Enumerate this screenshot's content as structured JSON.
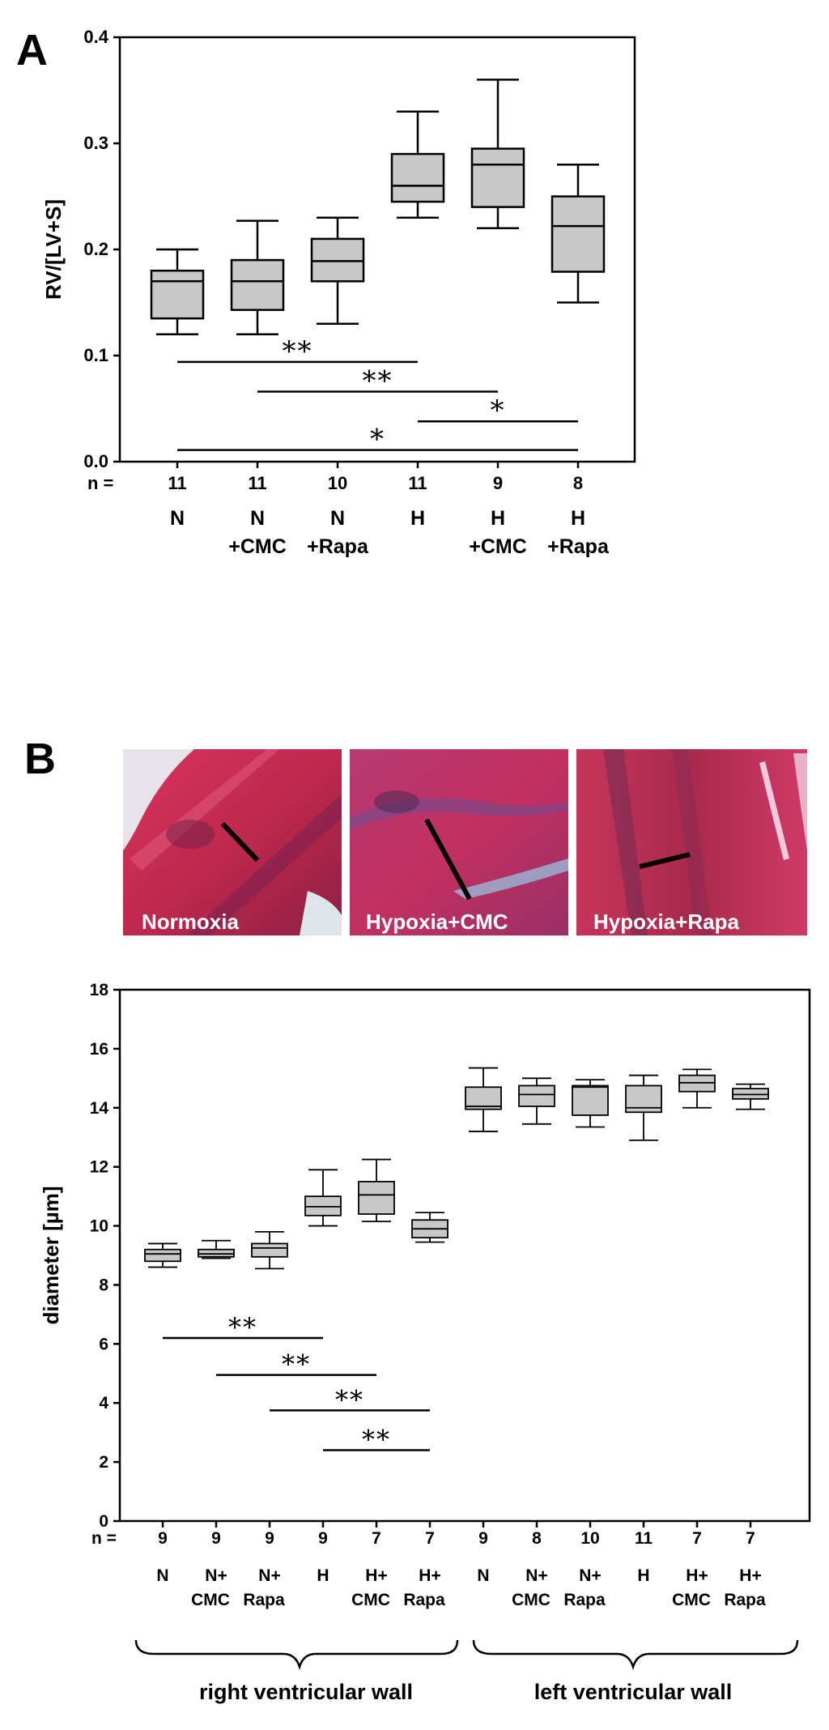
{
  "panel_a_letter": "A",
  "panel_b_letter": "B",
  "colors": {
    "box_fill": "#c8c8c8",
    "axis": "#000000",
    "tissue_red": "#c0284e"
  },
  "micrographs": [
    {
      "label": "Normoxia"
    },
    {
      "label": "Hypoxia+CMC"
    },
    {
      "label": "Hypoxia+Rapa"
    }
  ],
  "region_labels": [
    "right ventricular wall",
    "left ventricular wall"
  ],
  "chart_data": [
    {
      "type": "boxplot",
      "ylabel": "RV/[LV+S]",
      "xlabel": "",
      "ylim": [
        0,
        0.4
      ],
      "yticks": [
        "0.0",
        "0.1",
        "0.2",
        "0.3",
        "0.4"
      ],
      "n_label": "n =",
      "groups": [
        {
          "line1": "N",
          "line2": "",
          "n": "11",
          "whisker_low": 0.12,
          "q1": 0.135,
          "median": 0.17,
          "q3": 0.18,
          "whisker_high": 0.2
        },
        {
          "line1": "N",
          "line2": "+CMC",
          "n": "11",
          "whisker_low": 0.12,
          "q1": 0.143,
          "median": 0.17,
          "q3": 0.19,
          "whisker_high": 0.227
        },
        {
          "line1": "N",
          "line2": "+Rapa",
          "n": "10",
          "whisker_low": 0.13,
          "q1": 0.17,
          "median": 0.189,
          "q3": 0.21,
          "whisker_high": 0.23
        },
        {
          "line1": "H",
          "line2": "",
          "n": "11",
          "whisker_low": 0.23,
          "q1": 0.245,
          "median": 0.26,
          "q3": 0.29,
          "whisker_high": 0.33
        },
        {
          "line1": "H",
          "line2": "+CMC",
          "n": "9",
          "whisker_low": 0.22,
          "q1": 0.24,
          "median": 0.28,
          "q3": 0.295,
          "whisker_high": 0.36
        },
        {
          "line1": "H",
          "line2": "+Rapa",
          "n": "8",
          "whisker_low": 0.15,
          "q1": 0.179,
          "median": 0.222,
          "q3": 0.25,
          "whisker_high": 0.28
        }
      ],
      "significance": [
        {
          "from": 0,
          "to": 3,
          "y": 0.094,
          "label": "**"
        },
        {
          "from": 1,
          "to": 4,
          "y": 0.066,
          "label": "**"
        },
        {
          "from": 3,
          "to": 5,
          "y": 0.038,
          "label": "*"
        },
        {
          "from": 0,
          "to": 5,
          "y": 0.011,
          "label": "*"
        }
      ]
    },
    {
      "type": "boxplot",
      "ylabel": "diameter [µm]",
      "xlabel": "",
      "ylim": [
        0,
        18
      ],
      "yticks": [
        "0",
        "2",
        "4",
        "6",
        "8",
        "10",
        "12",
        "14",
        "16",
        "18"
      ],
      "n_label": "n =",
      "groups": [
        {
          "line1": "N",
          "line2": "",
          "n": "9",
          "whisker_low": 8.6,
          "q1": 8.8,
          "median": 9.05,
          "q3": 9.2,
          "whisker_high": 9.4
        },
        {
          "line1": "N+",
          "line2": "CMC",
          "n": "9",
          "whisker_low": 8.9,
          "q1": 8.95,
          "median": 9.05,
          "q3": 9.2,
          "whisker_high": 9.5
        },
        {
          "line1": "N+",
          "line2": "Rapa",
          "n": "9",
          "whisker_low": 8.55,
          "q1": 8.95,
          "median": 9.25,
          "q3": 9.4,
          "whisker_high": 9.8
        },
        {
          "line1": "H",
          "line2": "",
          "n": "9",
          "whisker_low": 10.0,
          "q1": 10.35,
          "median": 10.65,
          "q3": 11.0,
          "whisker_high": 11.9
        },
        {
          "line1": "H+",
          "line2": "CMC",
          "n": "7",
          "whisker_low": 10.15,
          "q1": 10.4,
          "median": 11.05,
          "q3": 11.5,
          "whisker_high": 12.25
        },
        {
          "line1": "H+",
          "line2": "Rapa",
          "n": "7",
          "whisker_low": 9.45,
          "q1": 9.6,
          "median": 9.9,
          "q3": 10.2,
          "whisker_high": 10.45
        },
        {
          "line1": "N",
          "line2": "",
          "n": "9",
          "whisker_low": 13.2,
          "q1": 13.95,
          "median": 14.05,
          "q3": 14.7,
          "whisker_high": 15.35
        },
        {
          "line1": "N+",
          "line2": "CMC",
          "n": "8",
          "whisker_low": 13.45,
          "q1": 14.05,
          "median": 14.45,
          "q3": 14.75,
          "whisker_high": 15.0
        },
        {
          "line1": "N+",
          "line2": "Rapa",
          "n": "10",
          "whisker_low": 13.35,
          "q1": 13.75,
          "median": 14.7,
          "q3": 14.75,
          "whisker_high": 14.95
        },
        {
          "line1": "H",
          "line2": "",
          "n": "11",
          "whisker_low": 12.9,
          "q1": 13.85,
          "median": 14.0,
          "q3": 14.75,
          "whisker_high": 15.1
        },
        {
          "line1": "H+",
          "line2": "CMC",
          "n": "7",
          "whisker_low": 14.0,
          "q1": 14.55,
          "median": 14.85,
          "q3": 15.1,
          "whisker_high": 15.3
        },
        {
          "line1": "H+",
          "line2": "Rapa",
          "n": "7",
          "whisker_low": 13.95,
          "q1": 14.3,
          "median": 14.45,
          "q3": 14.65,
          "whisker_high": 14.8
        }
      ],
      "significance": [
        {
          "from": 0,
          "to": 3,
          "y": 6.2,
          "label": "**"
        },
        {
          "from": 1,
          "to": 4,
          "y": 4.95,
          "label": "**"
        },
        {
          "from": 2,
          "to": 5,
          "y": 3.75,
          "label": "**"
        },
        {
          "from": 3,
          "to": 5,
          "y": 2.4,
          "label": "**"
        }
      ]
    }
  ]
}
